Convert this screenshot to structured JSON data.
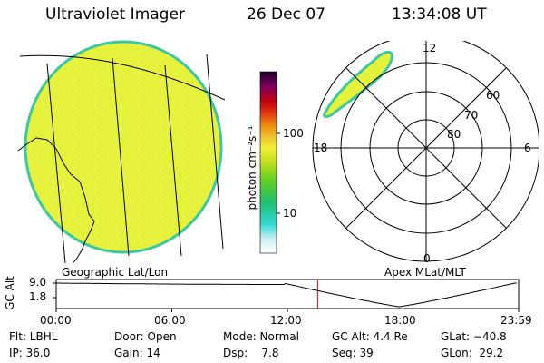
{
  "header": {
    "instrument": "Ultraviolet Imager",
    "date": "26 Dec 07",
    "time": "13:34:08 UT"
  },
  "geo_panel": {
    "caption": "Geographic Lat/Lon"
  },
  "polar_panel": {
    "caption": "Apex MLat/MLT",
    "mlt_labels": {
      "top": "12",
      "bottom": "0",
      "left": "18",
      "right": "6"
    },
    "lat_labels": [
      "60",
      "70",
      "80"
    ]
  },
  "colorbar": {
    "unit_label": "photon cm⁻²s⁻¹",
    "ticks": [
      "100",
      "10"
    ],
    "colors_bottom_to_top": [
      "#ffffff",
      "#c8f0f0",
      "#30d8d8",
      "#20c070",
      "#60d020",
      "#c0e020",
      "#f0f030",
      "#f0c030",
      "#f09010",
      "#e03010",
      "#c00010",
      "#800060",
      "#200030"
    ]
  },
  "altitude_strip": {
    "axis_label": "GC Alt",
    "y_ticks": [
      "9.0",
      "1.8"
    ],
    "x_ticks": [
      "00:00",
      "06:00",
      "12:00",
      "18:00",
      "23:59"
    ],
    "current_marker_hours": 13.57
  },
  "info": {
    "filter": "Flt: LBHL",
    "ip": "IP: 36.0",
    "door": "Door: Open",
    "gain": "Gain: 14",
    "mode": "Mode: Normal",
    "dsp": "Dsp:    7.8",
    "gc_alt": "GC Alt: 4.4 Re",
    "seq": "Seq: 39",
    "glat": "GLat: −40.8",
    "glon": "GLon:  29.2"
  },
  "colors": {
    "image_fill": "#e4f23a",
    "image_edge": "#3cc8a0",
    "marker": "#dd0000"
  }
}
